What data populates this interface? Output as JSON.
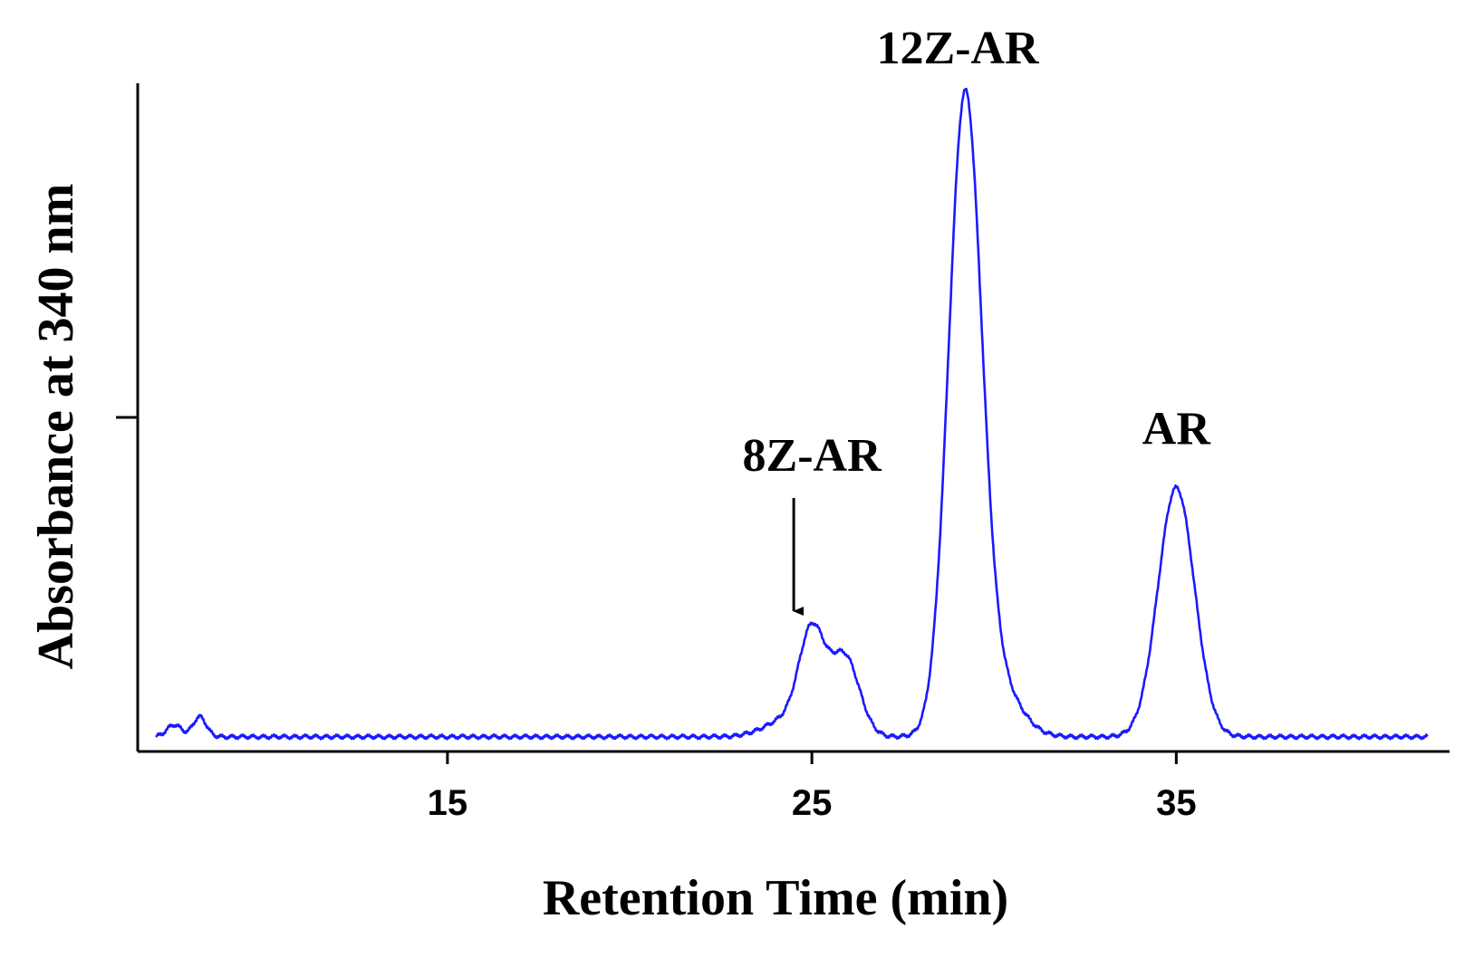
{
  "chart_data": {
    "type": "line",
    "xlabel": "Retention Time (min)",
    "ylabel": "Absorbance at 340 nm",
    "xlim": [
      6.5,
      42.5
    ],
    "ylim": [
      0,
      100
    ],
    "x_ticks": [
      15,
      25,
      35
    ],
    "y_ticks": [
      50
    ],
    "grid": false,
    "line_color": "#1a1aff",
    "series": [
      {
        "baseline": 2.2,
        "peaks": [
          {
            "x": 7.5,
            "height": 1.8,
            "width": 0.2
          },
          {
            "x": 8.2,
            "height": 3.0,
            "width": 0.18
          },
          {
            "x": 24.3,
            "height": 2.5,
            "width": 0.6
          },
          {
            "x": 25.0,
            "height": 14.8,
            "width": 0.35
          },
          {
            "x": 25.9,
            "height": 12.0,
            "width": 0.4
          },
          {
            "x": 29.2,
            "height": 94.3,
            "width": 0.45
          },
          {
            "x": 30.1,
            "height": 7.5,
            "width": 0.6
          },
          {
            "x": 35.0,
            "height": 37.3,
            "width": 0.5
          }
        ],
        "noise_amp": 0.35
      }
    ],
    "annotations": [
      {
        "text": "8Z-AR",
        "x": 25.0,
        "y": 42,
        "arrow_to": 21
      },
      {
        "text": "12Z-AR",
        "x": 29.0,
        "y": 103
      },
      {
        "text": "AR",
        "x": 35.0,
        "y": 46
      }
    ]
  }
}
